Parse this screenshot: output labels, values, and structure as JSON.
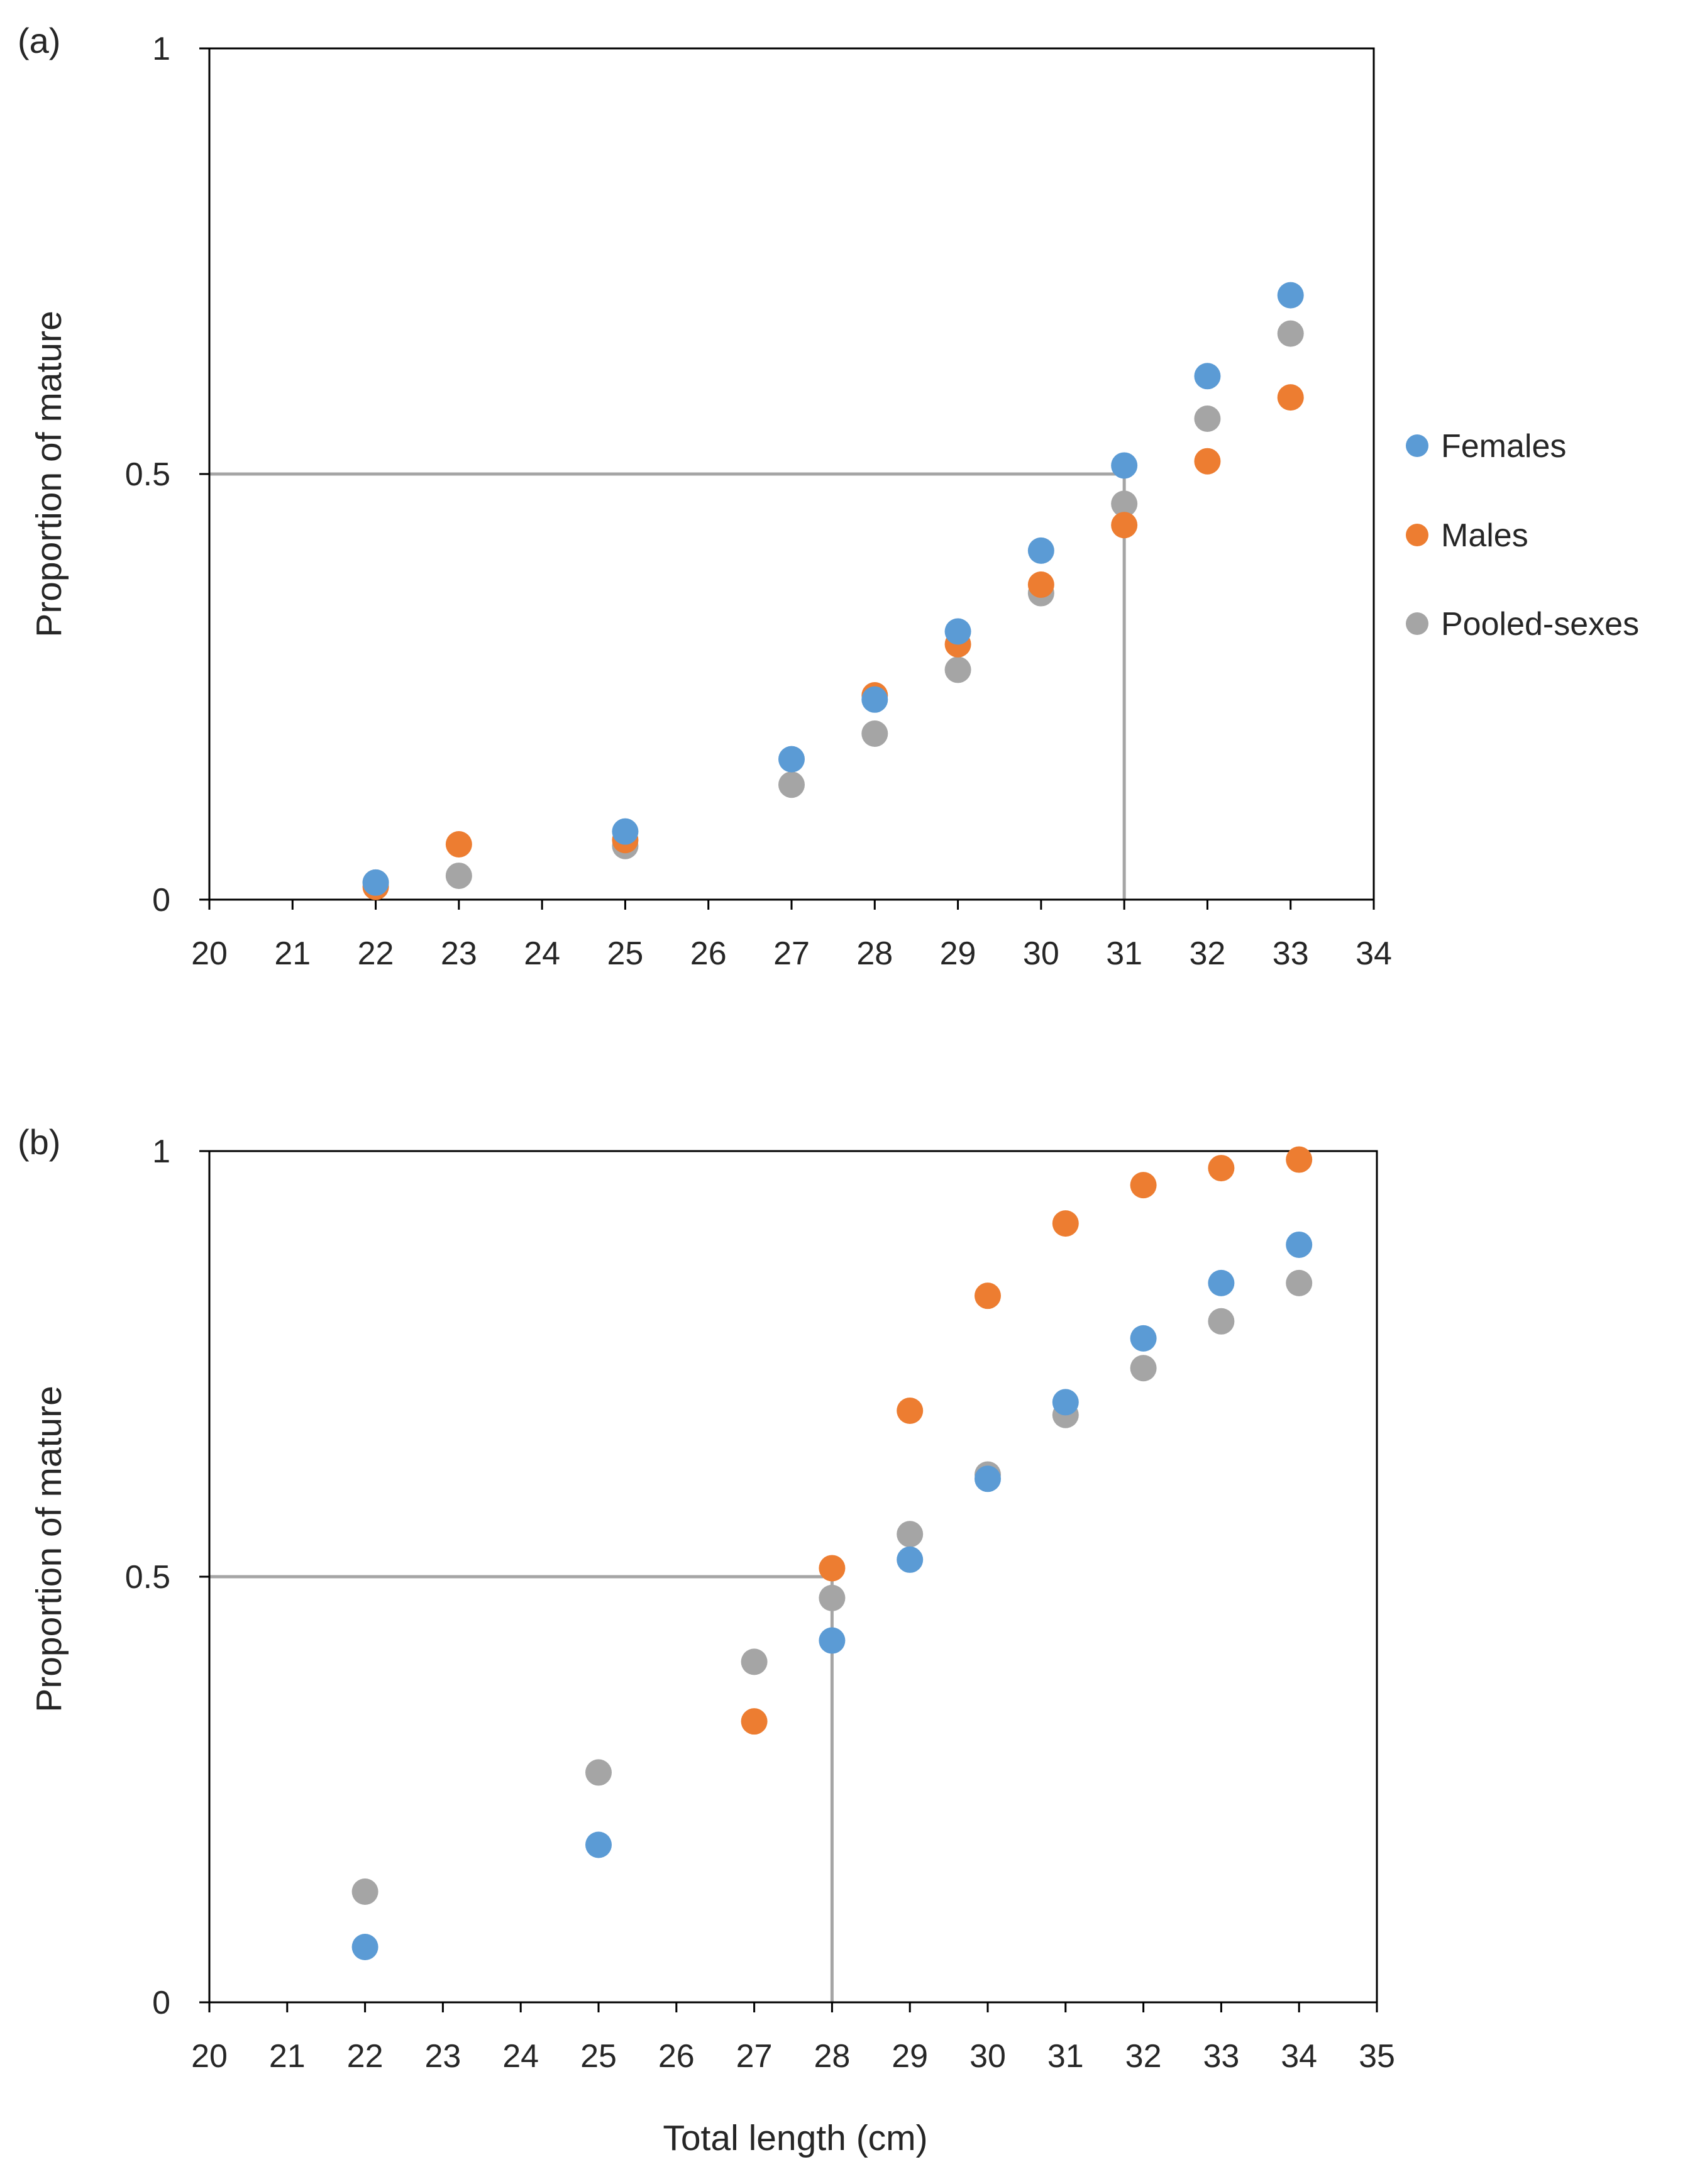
{
  "chart_data": [
    {
      "id": "a",
      "type": "scatter",
      "panel_label": "(a)",
      "title": "",
      "xlabel": "",
      "ylabel": "Proportion of mature",
      "xlim": [
        20,
        34
      ],
      "ylim": [
        0,
        1
      ],
      "x_ticks": [
        "20",
        "21",
        "22",
        "23",
        "24",
        "25",
        "26",
        "27",
        "28",
        "29",
        "30",
        "31",
        "32",
        "33",
        "34"
      ],
      "y_ticks": [
        "0",
        "0.5",
        "1"
      ],
      "grid": false,
      "legend_position": "right",
      "reference_lines": {
        "y": 0.5,
        "x": 31
      },
      "series": [
        {
          "name": "Females",
          "color": "#5B9BD5",
          "points": [
            [
              22,
              0.02
            ],
            [
              25,
              0.08
            ],
            [
              27,
              0.165
            ],
            [
              28,
              0.235
            ],
            [
              29,
              0.315
            ],
            [
              30,
              0.41
            ],
            [
              31,
              0.51
            ],
            [
              32,
              0.615
            ],
            [
              33,
              0.71
            ]
          ]
        },
        {
          "name": "Males",
          "color": "#ED7D31",
          "points": [
            [
              22,
              0.015
            ],
            [
              23,
              0.065
            ],
            [
              25,
              0.07
            ],
            [
              28,
              0.24
            ],
            [
              29,
              0.3
            ],
            [
              30,
              0.37
            ],
            [
              31,
              0.44
            ],
            [
              32,
              0.515
            ],
            [
              33,
              0.59
            ]
          ]
        },
        {
          "name": "Pooled-sexes",
          "color": "#A5A5A5",
          "points": [
            [
              22,
              0.02
            ],
            [
              23,
              0.028
            ],
            [
              25,
              0.063
            ],
            [
              27,
              0.135
            ],
            [
              28,
              0.195
            ],
            [
              29,
              0.27
            ],
            [
              30,
              0.36
            ],
            [
              31,
              0.465
            ],
            [
              32,
              0.565
            ],
            [
              33,
              0.665
            ]
          ]
        }
      ]
    },
    {
      "id": "b",
      "type": "scatter",
      "panel_label": "(b)",
      "title": "",
      "xlabel": "Total length (cm)",
      "ylabel": "Proportion of mature",
      "xlim": [
        20,
        35
      ],
      "ylim": [
        0,
        1
      ],
      "x_ticks": [
        "20",
        "21",
        "22",
        "23",
        "24",
        "25",
        "26",
        "27",
        "28",
        "29",
        "30",
        "31",
        "32",
        "33",
        "34",
        "35"
      ],
      "y_ticks": [
        "0",
        "0.5",
        "1"
      ],
      "grid": false,
      "reference_lines": {
        "y": 0.5,
        "x": 28
      },
      "series": [
        {
          "name": "Females",
          "color": "#5B9BD5",
          "points": [
            [
              22,
              0.065
            ],
            [
              25,
              0.185
            ],
            [
              28,
              0.425
            ],
            [
              29,
              0.52
            ],
            [
              30,
              0.615
            ],
            [
              31,
              0.705
            ],
            [
              32,
              0.78
            ],
            [
              33,
              0.845
            ],
            [
              34,
              0.89
            ]
          ]
        },
        {
          "name": "Males",
          "color": "#ED7D31",
          "points": [
            [
              27,
              0.33
            ],
            [
              28,
              0.51
            ],
            [
              29,
              0.695
            ],
            [
              30,
              0.83
            ],
            [
              31,
              0.915
            ],
            [
              32,
              0.96
            ],
            [
              33,
              0.98
            ],
            [
              34,
              0.99
            ]
          ]
        },
        {
          "name": "Pooled-sexes",
          "color": "#A5A5A5",
          "points": [
            [
              22,
              0.13
            ],
            [
              25,
              0.27
            ],
            [
              27,
              0.4
            ],
            [
              28,
              0.475
            ],
            [
              29,
              0.55
            ],
            [
              30,
              0.62
            ],
            [
              31,
              0.69
            ],
            [
              32,
              0.745
            ],
            [
              33,
              0.8
            ],
            [
              34,
              0.845
            ]
          ]
        }
      ]
    }
  ]
}
